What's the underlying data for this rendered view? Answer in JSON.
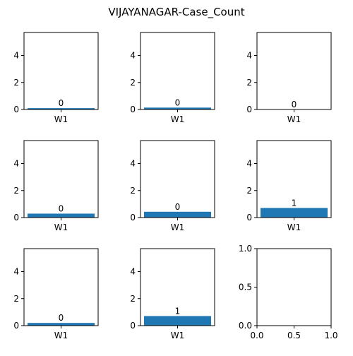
{
  "title": "VIJAYANAGAR-Case_Count",
  "colors": {
    "bar": "#1f77b4",
    "axis": "#000000"
  },
  "chart_data": [
    {
      "type": "bar",
      "categories": [
        "W1"
      ],
      "values": [
        0.1
      ],
      "data_labels": [
        "0"
      ],
      "ylim": [
        0,
        5.7
      ],
      "yticks": [
        "0",
        "2",
        "4"
      ],
      "ytick_values": [
        0,
        2,
        4
      ]
    },
    {
      "type": "bar",
      "categories": [
        "W1"
      ],
      "values": [
        0.14
      ],
      "data_labels": [
        "0"
      ],
      "ylim": [
        0,
        5.7
      ],
      "yticks": [
        "0",
        "2",
        "4"
      ],
      "ytick_values": [
        0,
        2,
        4
      ]
    },
    {
      "type": "bar",
      "categories": [
        "W1"
      ],
      "values": [
        0.0
      ],
      "data_labels": [
        "0"
      ],
      "ylim": [
        0,
        5.7
      ],
      "yticks": [
        "0",
        "2",
        "4"
      ],
      "ytick_values": [
        0,
        2,
        4
      ]
    },
    {
      "type": "bar",
      "categories": [
        "W1"
      ],
      "values": [
        0.29
      ],
      "data_labels": [
        "0"
      ],
      "ylim": [
        0,
        5.7
      ],
      "yticks": [
        "0",
        "2",
        "4"
      ],
      "ytick_values": [
        0,
        2,
        4
      ]
    },
    {
      "type": "bar",
      "categories": [
        "W1"
      ],
      "values": [
        0.43
      ],
      "data_labels": [
        "0"
      ],
      "ylim": [
        0,
        5.7
      ],
      "yticks": [
        "0",
        "2",
        "4"
      ],
      "ytick_values": [
        0,
        2,
        4
      ]
    },
    {
      "type": "bar",
      "categories": [
        "W1"
      ],
      "values": [
        0.71
      ],
      "data_labels": [
        "1"
      ],
      "ylim": [
        0,
        5.7
      ],
      "yticks": [
        "0",
        "2",
        "4"
      ],
      "ytick_values": [
        0,
        2,
        4
      ]
    },
    {
      "type": "bar",
      "categories": [
        "W1"
      ],
      "values": [
        0.2
      ],
      "data_labels": [
        "0"
      ],
      "ylim": [
        0,
        5.7
      ],
      "yticks": [
        "0",
        "2",
        "4"
      ],
      "ytick_values": [
        0,
        2,
        4
      ]
    },
    {
      "type": "bar",
      "categories": [
        "W1"
      ],
      "values": [
        0.71
      ],
      "data_labels": [
        "1"
      ],
      "ylim": [
        0,
        5.7
      ],
      "yticks": [
        "0",
        "2",
        "4"
      ],
      "ytick_values": [
        0,
        2,
        4
      ]
    },
    {
      "type": "empty",
      "categories": [],
      "values": [],
      "xlim": [
        0,
        1
      ],
      "ylim": [
        0,
        1
      ],
      "xticks": [
        "0.0",
        "0.5",
        "1.0"
      ],
      "xtick_values": [
        0,
        0.5,
        1
      ],
      "yticks": [
        "0.0",
        "0.5",
        "1.0"
      ],
      "ytick_values": [
        0,
        0.5,
        1
      ]
    }
  ]
}
